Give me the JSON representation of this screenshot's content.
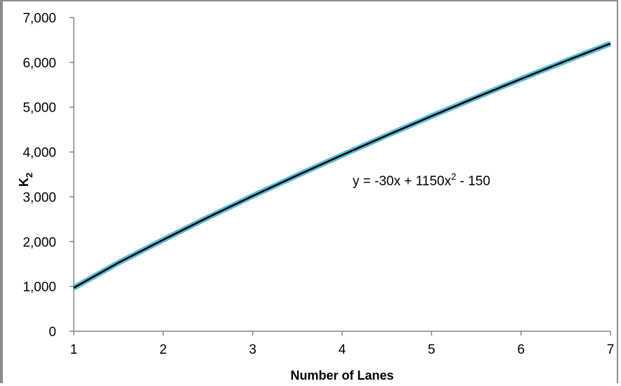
{
  "chart_data": {
    "type": "line",
    "title": "",
    "xlabel": "Number of Lanes",
    "ylabel_main": "K",
    "ylabel_sub": "2",
    "xlim": [
      1,
      7
    ],
    "ylim": [
      0,
      7000
    ],
    "x_ticks": [
      "1",
      "2",
      "3",
      "4",
      "5",
      "6",
      "7"
    ],
    "y_ticks": [
      "0",
      "1,000",
      "2,000",
      "3,000",
      "4,000",
      "5,000",
      "6,000",
      "7,000"
    ],
    "grid": false,
    "legend": "none",
    "series": [
      {
        "color": "#5bbad5",
        "x": [
          1,
          1.5,
          2,
          2.5,
          3,
          3.5,
          4,
          4.5,
          5,
          5.5,
          6,
          6.5,
          7
        ],
        "y": [
          970,
          1530,
          2040,
          2540,
          3020,
          3480,
          3930,
          4370,
          4800,
          5220,
          5630,
          6030,
          6420
        ]
      },
      {
        "color": "#000000",
        "x": [
          1,
          1.5,
          2,
          2.5,
          3,
          3.5,
          4,
          4.5,
          5,
          5.5,
          6,
          6.5,
          7
        ],
        "y": [
          970,
          1530,
          2040,
          2540,
          3020,
          3480,
          3930,
          4370,
          4800,
          5220,
          5630,
          6030,
          6420
        ]
      }
    ],
    "annotation": {
      "text_before": "y = -30x + 1150x",
      "sup": "2",
      "text_after": " - 150"
    }
  }
}
